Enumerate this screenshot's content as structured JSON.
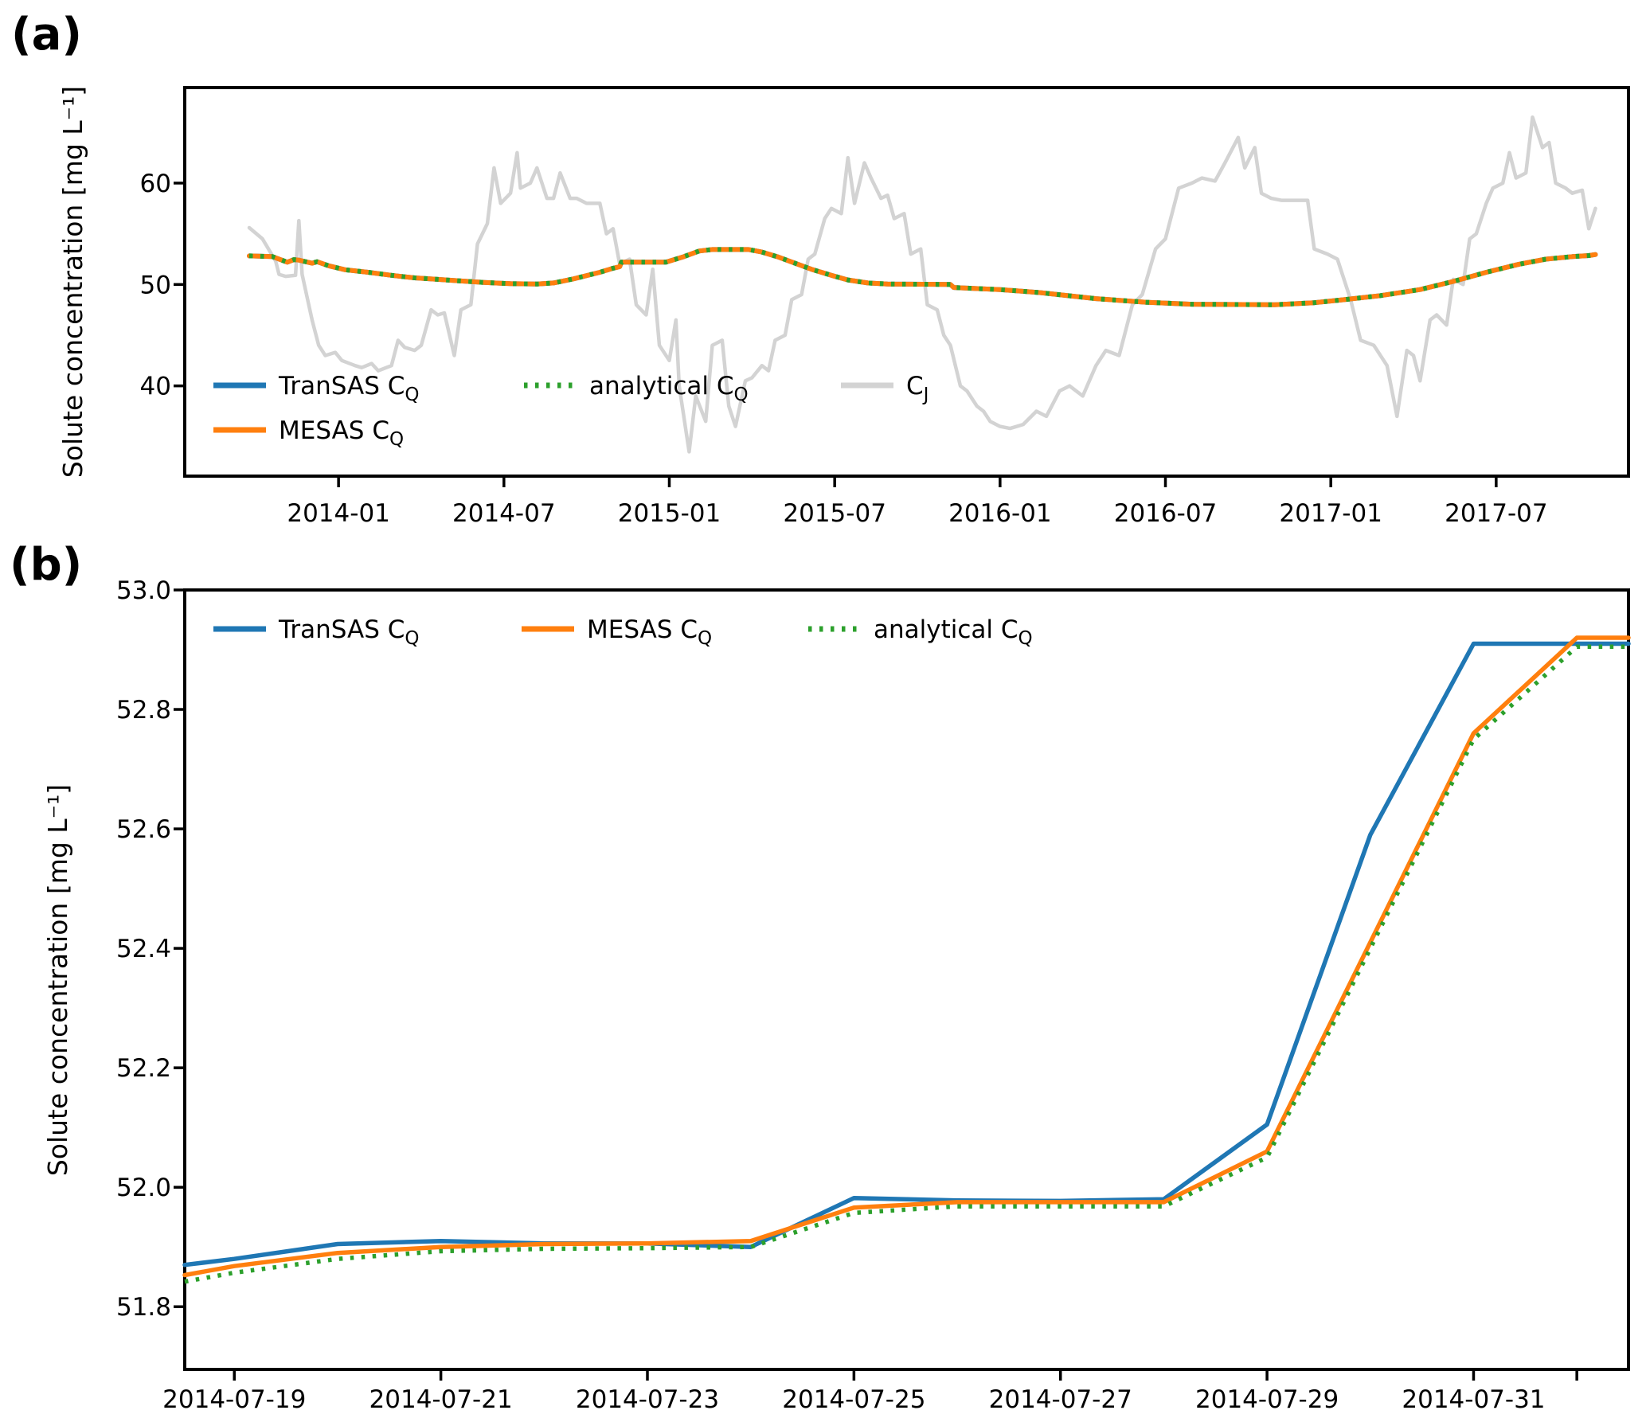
{
  "figure": {
    "background": "#ffffff",
    "panel_a": {
      "tag": "(a)",
      "ylabel": "Solute concentration [mg L⁻¹]",
      "legend": [
        {
          "text": "TranSAS C",
          "sub": "Q"
        },
        {
          "text": "MESAS C",
          "sub": "Q"
        },
        {
          "text": "analytical C",
          "sub": "Q"
        },
        {
          "text": "C",
          "sub": "J"
        }
      ]
    },
    "panel_b": {
      "tag": "(b)",
      "ylabel": "Solute concentration [mg L⁻¹]",
      "legend": [
        {
          "text": "TranSAS C",
          "sub": "Q"
        },
        {
          "text": "MESAS C",
          "sub": "Q"
        },
        {
          "text": "analytical C",
          "sub": "Q"
        }
      ]
    }
  },
  "chart_data": [
    {
      "type": "line",
      "panel": "a",
      "ylabel": "Solute concentration [mg L⁻¹]",
      "x_unit": "decimal year",
      "xlim": [
        2013.535,
        2017.9
      ],
      "ylim": [
        31.1,
        69.42
      ],
      "ytick_values": [
        40,
        50,
        60
      ],
      "ytick_labels": [
        "40",
        "50",
        "60"
      ],
      "xtick_values": [
        2014.0,
        2014.5,
        2015.0,
        2015.5,
        2016.0,
        2016.5,
        2017.0,
        2017.5
      ],
      "xtick_labels": [
        "2014-01",
        "2014-07",
        "2015-01",
        "2015-07",
        "2016-01",
        "2016-07",
        "2017-01",
        "2017-07"
      ],
      "grid": false,
      "legend_position": "lower-left inside, no frame",
      "note": "TranSAS CQ, MESAS CQ and analytical CQ coincide at this scale; green dotted analytical CQ is drawn over the orange MESAS CQ, blue TranSAS CQ hidden underneath",
      "cq_x": [
        2013.73,
        2013.8,
        2013.845,
        2013.865,
        2013.88,
        2013.92,
        2013.935,
        2013.97,
        2014.02,
        2014.09,
        2014.16,
        2014.23,
        2014.3,
        2014.37,
        2014.44,
        2014.52,
        2014.6,
        2014.65,
        2014.71,
        2014.79,
        2014.83,
        2014.85,
        2014.855,
        2014.99,
        2015.04,
        2015.09,
        2015.13,
        2015.24,
        2015.28,
        2015.33,
        2015.38,
        2015.43,
        2015.49,
        2015.54,
        2015.6,
        2015.66,
        2015.85,
        2015.86,
        2016.0,
        2016.12,
        2016.29,
        2016.44,
        2016.58,
        2016.83,
        2016.95,
        2017.04,
        2017.15,
        2017.27,
        2017.37,
        2017.47,
        2017.57,
        2017.65,
        2017.73,
        2017.78,
        2017.8
      ],
      "cq_y": [
        52.82,
        52.75,
        52.2,
        52.45,
        52.4,
        52.1,
        52.25,
        51.85,
        51.45,
        51.2,
        50.9,
        50.65,
        50.5,
        50.35,
        50.2,
        50.08,
        50.05,
        50.15,
        50.55,
        51.2,
        51.6,
        51.75,
        52.2,
        52.2,
        52.7,
        53.3,
        53.45,
        53.45,
        53.2,
        52.7,
        52.1,
        51.5,
        50.9,
        50.45,
        50.15,
        50.05,
        50.0,
        49.7,
        49.5,
        49.2,
        48.6,
        48.25,
        48.05,
        48.0,
        48.2,
        48.5,
        48.9,
        49.5,
        50.3,
        51.2,
        52.0,
        52.5,
        52.75,
        52.85,
        52.95
      ],
      "series": [
        {
          "name": "TranSAS CQ",
          "color": "#1f77b4",
          "style": "solid",
          "data": "cq"
        },
        {
          "name": "MESAS CQ",
          "color": "#ff7f0e",
          "style": "solid",
          "data": "cq"
        },
        {
          "name": "analytical CQ",
          "color": "#2ca02c",
          "style": "dotted",
          "data": "cq"
        },
        {
          "name": "CJ",
          "color": "#d3d3d3",
          "style": "solid",
          "x": [
            2013.73,
            2013.77,
            2013.81,
            2013.82,
            2013.84,
            2013.87,
            2013.88,
            2013.89,
            2013.92,
            2013.94,
            2013.96,
            2013.99,
            2014.01,
            2014.05,
            2014.07,
            2014.1,
            2014.12,
            2014.16,
            2014.18,
            2014.2,
            2014.23,
            2014.25,
            2014.28,
            2014.3,
            2014.32,
            2014.35,
            2014.37,
            2014.4,
            2014.42,
            2014.45,
            2014.47,
            2014.49,
            2014.52,
            2014.54,
            2014.55,
            2014.58,
            2014.6,
            2014.63,
            2014.65,
            2014.67,
            2014.7,
            2014.72,
            2014.75,
            2014.79,
            2014.81,
            2014.83,
            2014.85,
            2014.88,
            2014.9,
            2014.93,
            2014.95,
            2014.97,
            2015.0,
            2015.02,
            2015.03,
            2015.06,
            2015.08,
            2015.11,
            2015.13,
            2015.16,
            2015.18,
            2015.2,
            2015.23,
            2015.25,
            2015.28,
            2015.3,
            2015.32,
            2015.35,
            2015.37,
            2015.4,
            2015.42,
            2015.44,
            2015.47,
            2015.49,
            2015.52,
            2015.54,
            2015.56,
            2015.59,
            2015.61,
            2015.64,
            2015.66,
            2015.68,
            2015.71,
            2015.73,
            2015.76,
            2015.78,
            2015.81,
            2015.83,
            2015.85,
            2015.88,
            2015.9,
            2015.93,
            2015.95,
            2015.97,
            2016.0,
            2016.03,
            2016.07,
            2016.11,
            2016.14,
            2016.18,
            2016.21,
            2016.25,
            2016.29,
            2016.32,
            2016.36,
            2016.4,
            2016.43,
            2016.47,
            2016.5,
            2016.54,
            2016.58,
            2016.61,
            2016.65,
            2016.68,
            2016.72,
            2016.74,
            2016.77,
            2016.79,
            2016.82,
            2016.85,
            2016.93,
            2016.95,
            2016.99,
            2017.02,
            2017.06,
            2017.09,
            2017.13,
            2017.17,
            2017.2,
            2017.23,
            2017.25,
            2017.27,
            2017.3,
            2017.32,
            2017.35,
            2017.37,
            2017.4,
            2017.42,
            2017.44,
            2017.47,
            2017.49,
            2017.52,
            2017.54,
            2017.56,
            2017.59,
            2017.61,
            2017.64,
            2017.66,
            2017.68,
            2017.71,
            2017.73,
            2017.76,
            2017.78,
            2017.8
          ],
          "y": [
            55.6,
            54.5,
            52.3,
            51.0,
            50.8,
            50.9,
            56.3,
            51.0,
            46.5,
            44.0,
            43.0,
            43.3,
            42.5,
            42.0,
            41.8,
            42.2,
            41.5,
            42.0,
            44.5,
            43.8,
            43.5,
            44.0,
            47.5,
            47.0,
            47.2,
            43.0,
            47.5,
            48.0,
            54.0,
            56.0,
            61.5,
            58.0,
            59.0,
            63.0,
            59.5,
            60.0,
            61.5,
            58.5,
            58.5,
            61.0,
            58.5,
            58.5,
            58.0,
            58.0,
            55.0,
            55.5,
            52.0,
            52.5,
            48.0,
            47.0,
            51.5,
            44.0,
            42.5,
            46.5,
            40.0,
            33.5,
            39.0,
            36.5,
            44.0,
            44.5,
            38.0,
            36.0,
            40.5,
            40.8,
            42.0,
            41.5,
            44.5,
            45.0,
            48.5,
            49.0,
            52.5,
            53.0,
            56.5,
            57.5,
            57.0,
            62.5,
            58.0,
            62.0,
            60.5,
            58.5,
            58.8,
            56.5,
            57.0,
            53.0,
            53.5,
            48.0,
            47.5,
            45.0,
            44.0,
            40.0,
            39.5,
            38.0,
            37.5,
            36.5,
            36.0,
            35.8,
            36.2,
            37.5,
            37.0,
            39.5,
            40.0,
            39.0,
            42.0,
            43.5,
            43.0,
            48.0,
            49.0,
            53.5,
            54.5,
            59.5,
            60.0,
            60.5,
            60.2,
            62.0,
            64.5,
            61.5,
            63.5,
            59.0,
            58.5,
            58.3,
            58.3,
            53.5,
            53.0,
            52.5,
            48.5,
            44.5,
            44.0,
            42.0,
            37.0,
            43.5,
            43.0,
            40.5,
            46.5,
            47.0,
            46.0,
            50.5,
            50.0,
            54.5,
            55.0,
            58.0,
            59.5,
            60.0,
            63.0,
            60.5,
            61.0,
            66.5,
            63.5,
            64.0,
            60.0,
            59.5,
            59.0,
            59.3,
            55.5,
            57.5
          ]
        }
      ]
    },
    {
      "type": "line",
      "panel": "b",
      "ylabel": "Solute concentration [mg L⁻¹]",
      "x_unit": "day of July 2014 (32 = Aug 1)",
      "xlim": [
        18.52,
        32.5
      ],
      "ylim": [
        51.695,
        53.0
      ],
      "ytick_values": [
        51.8,
        52.0,
        52.2,
        52.4,
        52.6,
        52.8,
        53.0
      ],
      "ytick_labels": [
        "51.8",
        "52.0",
        "52.2",
        "52.4",
        "52.6",
        "52.8",
        "53.0"
      ],
      "xtick_values": [
        19,
        21,
        23,
        25,
        27,
        29,
        31,
        32
      ],
      "xtick_labels": [
        "2014-07-19",
        "2014-07-21",
        "2014-07-23",
        "2014-07-25",
        "2014-07-27",
        "2014-07-29",
        "2014-07-31",
        ""
      ],
      "grid": false,
      "legend_position": "top-left inside, one row, no frame",
      "x": [
        18.52,
        19,
        20,
        21,
        22,
        23,
        24,
        25,
        26,
        27,
        28,
        29,
        30,
        31,
        32,
        32.5
      ],
      "series": [
        {
          "name": "TranSAS CQ",
          "color": "#1f77b4",
          "style": "solid",
          "y": [
            51.87,
            51.88,
            51.905,
            51.91,
            51.906,
            51.906,
            51.9,
            51.982,
            51.978,
            51.977,
            51.98,
            52.105,
            52.59,
            52.91,
            52.91,
            52.91
          ]
        },
        {
          "name": "MESAS CQ",
          "color": "#ff7f0e",
          "style": "solid",
          "y": [
            51.853,
            51.868,
            51.89,
            51.9,
            51.905,
            51.906,
            51.91,
            51.966,
            51.975,
            51.975,
            51.975,
            52.06,
            52.41,
            52.76,
            52.92,
            52.92
          ]
        },
        {
          "name": "analytical CQ",
          "color": "#2ca02c",
          "style": "dotted",
          "y": [
            51.842,
            51.857,
            51.88,
            51.893,
            51.897,
            51.898,
            51.9,
            51.957,
            51.968,
            51.968,
            51.968,
            52.05,
            52.4,
            52.75,
            52.905,
            52.905
          ]
        }
      ]
    }
  ]
}
